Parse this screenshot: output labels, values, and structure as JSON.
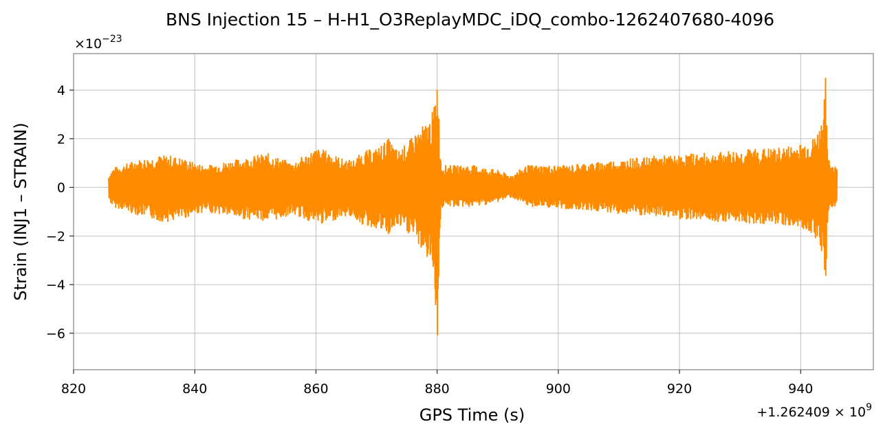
{
  "chart_data": {
    "type": "line",
    "title": "BNS Injection 15 – H-H1_O3ReplayMDC_iDQ_combo-1262407680-4096",
    "xlabel": "GPS Time (s)",
    "ylabel": "Strain (INJ1 – STRAIN)",
    "x_offset_label": "+1.262409 × 10",
    "x_offset_exponent": "9",
    "y_scale_label": "×10",
    "y_scale_exponent": "−23",
    "xlim": [
      820,
      952
    ],
    "ylim": [
      -7.5,
      5.5
    ],
    "x_ticks": [
      820,
      840,
      860,
      880,
      900,
      920,
      940
    ],
    "x_tick_labels": [
      "820",
      "840",
      "860",
      "880",
      "900",
      "920",
      "940"
    ],
    "y_ticks": [
      -6,
      -4,
      -2,
      0,
      2,
      4
    ],
    "y_tick_labels": [
      "−6",
      "−4",
      "−2",
      "0",
      "2",
      "4"
    ],
    "grid": true,
    "series_color": "#ff8c00",
    "series": [
      {
        "x_range": [
          825.8,
          946.0
        ],
        "envelope": {
          "x": [
            825.8,
            826.5,
            828,
            830,
            832,
            834,
            836,
            838,
            840,
            842,
            844,
            846,
            848,
            850,
            852,
            854,
            856,
            858,
            860,
            862,
            864,
            866,
            868,
            870,
            872,
            873.5,
            875,
            876,
            877,
            878,
            879,
            879.6,
            880.1,
            880.4,
            880.7,
            881,
            882,
            884,
            886,
            888,
            890,
            891,
            892,
            893,
            894,
            895,
            896,
            898,
            900,
            902,
            904,
            906,
            908,
            910,
            912,
            914,
            916,
            918,
            920,
            922,
            924,
            926,
            928,
            930,
            932,
            934,
            936,
            938,
            940,
            941,
            942,
            943,
            943.6,
            944.1,
            944.4,
            945,
            946
          ],
          "upper": [
            0.5,
            0.8,
            0.9,
            1.1,
            1.2,
            1.3,
            1.3,
            1.2,
            1.0,
            0.9,
            1.0,
            1.1,
            1.2,
            1.3,
            1.4,
            1.2,
            1.0,
            1.3,
            1.6,
            1.5,
            1.2,
            1.1,
            1.5,
            1.6,
            2.0,
            1.5,
            1.8,
            2.1,
            2.4,
            2.6,
            2.9,
            3.5,
            4.9,
            2.0,
            1.0,
            0.9,
            0.9,
            0.9,
            0.9,
            0.8,
            0.7,
            0.6,
            0.5,
            0.6,
            0.8,
            0.9,
            0.9,
            0.9,
            0.9,
            0.9,
            1.0,
            1.0,
            1.1,
            1.1,
            1.2,
            1.2,
            1.3,
            1.3,
            1.3,
            1.4,
            1.4,
            1.4,
            1.5,
            1.5,
            1.6,
            1.6,
            1.6,
            1.7,
            1.8,
            1.9,
            2.0,
            2.4,
            3.0,
            4.5,
            1.6,
            1.0,
            0.8
          ],
          "lower": [
            -0.5,
            -0.8,
            -0.9,
            -1.1,
            -1.2,
            -1.4,
            -1.4,
            -1.3,
            -1.1,
            -1.0,
            -1.1,
            -1.2,
            -1.3,
            -1.3,
            -1.4,
            -1.3,
            -1.1,
            -1.3,
            -1.5,
            -1.5,
            -1.2,
            -1.2,
            -1.6,
            -1.7,
            -2.0,
            -1.6,
            -1.9,
            -2.0,
            -2.4,
            -2.8,
            -3.2,
            -4.0,
            -6.9,
            -2.0,
            -0.9,
            -0.8,
            -0.8,
            -0.8,
            -0.8,
            -0.7,
            -0.6,
            -0.5,
            -0.4,
            -0.5,
            -0.7,
            -0.8,
            -0.8,
            -0.8,
            -0.9,
            -0.9,
            -0.9,
            -1.0,
            -1.0,
            -1.1,
            -1.1,
            -1.2,
            -1.2,
            -1.2,
            -1.3,
            -1.3,
            -1.3,
            -1.4,
            -1.4,
            -1.4,
            -1.5,
            -1.5,
            -1.5,
            -1.6,
            -1.7,
            -1.8,
            -1.9,
            -2.3,
            -2.9,
            -4.5,
            -1.5,
            -0.9,
            -0.7
          ]
        }
      }
    ]
  }
}
